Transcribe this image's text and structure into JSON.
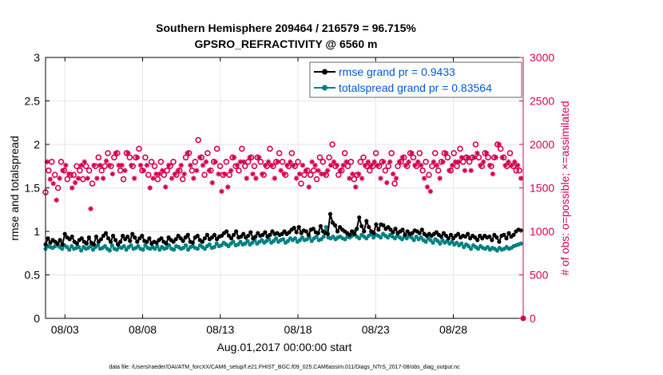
{
  "chart_data": {
    "type": "line",
    "title": "Southern Hemisphere 209464 / 216579 = 96.715%",
    "subtitle": "GPSRO_REFRACTIVITY @ 6560 m",
    "xlabel": "Aug.01,2017 00:00:00 start",
    "ylabel_left": "rmse and totalspread",
    "ylabel_right": "# of obs: o=possible; ×=assimilated",
    "footer": "data file: /Users/raeder/DAI/ATM_forcXX/CAM6_setup/f.e21.FHIST_BGC.f09_025.CAM6assim.011/Diags_NTrS_2017-08/obs_diag_output.nc",
    "x_tick_labels": [
      "08/03",
      "08/08",
      "08/13",
      "08/18",
      "08/23",
      "08/28"
    ],
    "x_tick_values": [
      3,
      8,
      13,
      18,
      23,
      28
    ],
    "xlim": [
      1.75,
      32.5
    ],
    "ylim_left": [
      0,
      3
    ],
    "ylim_right": [
      0,
      3000
    ],
    "y_left_ticks": [
      "0",
      "0.5",
      "1",
      "1.5",
      "2",
      "2.5",
      "3"
    ],
    "y_right_ticks": [
      "0",
      "500",
      "1000",
      "1500",
      "2000",
      "2500",
      "3000"
    ],
    "grid": true,
    "legend_placement": "top-right",
    "colors": {
      "rmse": "#000000",
      "spread": "#008080",
      "obs": "#d6004f",
      "legend_text": "#0057d9",
      "grid": "#e6e6e6"
    },
    "series": [
      {
        "name": "rmse grand pr = 0.9433",
        "axis": "left",
        "values": [
          0.85,
          0.92,
          0.87,
          0.9,
          0.88,
          0.86,
          0.9,
          0.85,
          0.97,
          0.93,
          0.91,
          0.94,
          0.88,
          0.86,
          0.9,
          0.92,
          0.88,
          0.86,
          0.93,
          0.87,
          0.85,
          0.94,
          0.88,
          0.91,
          0.95,
          0.98,
          0.92,
          0.88,
          0.95,
          0.9,
          0.85,
          0.88,
          0.95,
          0.91,
          0.94,
          0.89,
          0.97,
          0.93,
          0.88,
          0.92,
          0.95,
          0.89,
          0.88,
          0.92,
          0.86,
          0.88,
          0.87,
          0.9,
          0.92,
          0.88,
          0.86,
          0.93,
          0.9,
          0.88,
          0.91,
          0.95,
          0.92,
          0.89,
          0.93,
          0.96,
          0.88,
          0.87,
          0.93,
          0.95,
          0.9,
          0.88,
          0.92,
          0.96,
          0.91,
          0.93,
          0.96,
          0.91,
          0.94,
          0.95,
          0.98,
          1.0,
          0.95,
          0.92,
          0.96,
          1.0,
          0.93,
          0.94,
          0.97,
          0.93,
          0.95,
          0.99,
          0.92,
          0.94,
          0.98,
          0.95,
          0.96,
          0.99,
          0.94,
          0.96,
          1.0,
          0.97,
          0.98,
          0.96,
          0.97,
          1.0,
          0.97,
          0.99,
          1.02,
          1.04,
          0.99,
          1.05,
          0.98,
          1.01,
          1.0,
          0.96,
          1.02,
          1.03,
          0.99,
          0.98,
          1.06,
          1.0,
          0.98,
          0.97,
          1.2,
          1.1,
          1.07,
          1.0,
          1.05,
          1.02,
          1.0,
          0.98,
          0.96,
          1.0,
          0.97,
          1.03,
          1.16,
          1.06,
          1.0,
          1.12,
          1.05,
          1.0,
          0.98,
          1.08,
          1.02,
          1.08,
          1.07,
          1.03,
          1.05,
          1.02,
          0.99,
          1.03,
          0.98,
          1.0,
          1.02,
          0.96,
          1.0,
          0.97,
          0.98,
          1.01,
          1.0,
          0.98,
          1.02,
          0.97,
          0.95,
          0.97,
          0.95,
          0.97,
          0.99,
          0.96,
          0.94,
          0.98,
          0.95,
          0.92,
          0.96,
          0.92,
          0.95,
          0.97,
          0.93,
          0.95,
          0.94,
          0.97,
          0.92,
          0.95,
          0.93,
          0.9,
          0.95,
          0.92,
          0.95,
          0.93,
          0.94,
          0.9,
          0.96,
          0.93,
          0.88,
          0.95,
          0.96,
          0.92,
          0.98,
          0.94,
          0.96,
          1.0,
          1.02,
          1.01
        ]
      },
      {
        "name": "totalspread grand pr = 0.83564",
        "axis": "left",
        "values": [
          0.8,
          0.83,
          0.82,
          0.81,
          0.83,
          0.84,
          0.82,
          0.8,
          0.84,
          0.82,
          0.79,
          0.83,
          0.8,
          0.81,
          0.82,
          0.78,
          0.82,
          0.8,
          0.81,
          0.83,
          0.79,
          0.82,
          0.84,
          0.8,
          0.81,
          0.83,
          0.8,
          0.78,
          0.84,
          0.8,
          0.79,
          0.82,
          0.81,
          0.83,
          0.79,
          0.82,
          0.84,
          0.8,
          0.81,
          0.83,
          0.8,
          0.79,
          0.84,
          0.81,
          0.8,
          0.82,
          0.8,
          0.83,
          0.79,
          0.82,
          0.8,
          0.81,
          0.84,
          0.8,
          0.79,
          0.83,
          0.82,
          0.8,
          0.81,
          0.84,
          0.79,
          0.82,
          0.83,
          0.81,
          0.8,
          0.84,
          0.82,
          0.8,
          0.83,
          0.85,
          0.81,
          0.82,
          0.86,
          0.83,
          0.84,
          0.87,
          0.85,
          0.83,
          0.86,
          0.88,
          0.84,
          0.85,
          0.88,
          0.85,
          0.86,
          0.89,
          0.85,
          0.87,
          0.9,
          0.86,
          0.88,
          0.9,
          0.87,
          0.89,
          0.91,
          0.87,
          0.89,
          0.92,
          0.88,
          0.9,
          0.91,
          0.87,
          0.89,
          0.92,
          0.9,
          0.92,
          0.88,
          0.9,
          0.93,
          0.9,
          0.91,
          0.93,
          0.89,
          0.92,
          0.94,
          0.9,
          0.91,
          0.94,
          1.05,
          0.93,
          0.92,
          0.94,
          0.91,
          0.93,
          0.94,
          0.92,
          0.91,
          0.94,
          0.93,
          0.95,
          1.0,
          0.94,
          0.92,
          0.96,
          0.94,
          0.92,
          0.95,
          0.97,
          0.93,
          0.96,
          0.95,
          0.93,
          0.97,
          0.95,
          0.93,
          0.96,
          0.94,
          0.92,
          0.95,
          0.93,
          0.91,
          0.94,
          0.92,
          0.95,
          0.93,
          0.9,
          0.94,
          0.91,
          0.93,
          0.9,
          0.88,
          0.92,
          0.9,
          0.87,
          0.91,
          0.89,
          0.86,
          0.9,
          0.87,
          0.89,
          0.86,
          0.88,
          0.85,
          0.87,
          0.84,
          0.86,
          0.82,
          0.85,
          0.83,
          0.8,
          0.84,
          0.82,
          0.8,
          0.83,
          0.81,
          0.8,
          0.82,
          0.79,
          0.81,
          0.8,
          0.78,
          0.81,
          0.79,
          0.8,
          0.82,
          0.8,
          0.81,
          0.83,
          0.84,
          0.85,
          0.86
        ]
      },
      {
        "name": "obs possible",
        "axis": "right",
        "marker": "o",
        "values": [
          1450,
          1850,
          1700,
          1650,
          1800,
          1600,
          1650,
          1400,
          1500,
          1650,
          1800,
          1750,
          1700,
          1800,
          1600,
          1700,
          1650,
          1550,
          1650,
          1600,
          1750,
          1650,
          1700,
          1800,
          1600,
          1850,
          1750,
          1650,
          1700,
          1300,
          1550,
          1800,
          1750,
          1650,
          1850,
          1800,
          1700,
          1650,
          1750,
          1850,
          1900,
          1800,
          1750,
          1700,
          1850,
          1950,
          1900,
          1800,
          1700,
          1800,
          1600,
          1750,
          1900,
          1950,
          1850,
          1800,
          1750,
          1650,
          1850,
          1900,
          1950,
          1800,
          1700,
          1750,
          1850,
          1800,
          1650,
          1550,
          1800,
          1650,
          1750,
          1700,
          1600,
          1700,
          1800,
          1750,
          1650,
          1550,
          1700,
          1800,
          1750,
          1650,
          1800,
          1700,
          1650,
          1750,
          1700,
          1800,
          1600,
          1700,
          1850,
          1950,
          1900,
          1800,
          1700,
          1650,
          1800,
          1750,
          2050,
          1900,
          1850,
          1800,
          1650,
          1850,
          1900,
          1750,
          1700,
          1600,
          1800,
          1850,
          1950,
          1700,
          1750,
          1500,
          1650,
          1700,
          1800,
          1550,
          1650,
          1750,
          1850,
          1900,
          1750,
          1800,
          1700,
          1850,
          1950,
          1850,
          1750,
          1650,
          1800,
          1900,
          1850,
          1700,
          1750,
          1650,
          1850,
          1900,
          1800,
          1700,
          1650,
          1800,
          1750,
          1850,
          1950,
          1800,
          1750,
          1650,
          1800,
          1850,
          1900,
          1750,
          1800,
          1700,
          1650,
          1800,
          1750,
          1850,
          1900,
          1800,
          1750,
          1650,
          1800,
          1700,
          1550,
          1800,
          1650,
          1750,
          1700,
          1550,
          1650,
          1850,
          1700,
          1800,
          1600,
          1750,
          1850,
          1700,
          1800,
          1700,
          1650,
          1750,
          1850,
          1800,
          2000,
          1850,
          1750,
          1800,
          1650,
          1750,
          1700,
          1800,
          1900,
          1850,
          1750,
          1650,
          1800,
          1700,
          1600,
          1550,
          1650,
          1700,
          1800,
          1650,
          1850,
          1800,
          1750,
          1850,
          1700,
          1800,
          1750,
          1850,
          1900,
          1800,
          1750,
          1650,
          1800,
          1850,
          1700,
          1600,
          1750,
          1850,
          1900,
          1700,
          1550,
          1650,
          1750,
          1850,
          1800,
          1900,
          1850,
          1800,
          1750,
          1850,
          1900,
          1950,
          1850,
          1800,
          1750,
          1850,
          1900,
          1800,
          1700,
          1650,
          1800,
          1550,
          1650,
          1500,
          1750,
          1850,
          1900,
          1800,
          1700,
          1650,
          1800,
          1850,
          1900,
          1950,
          1850,
          1750,
          1700,
          1800,
          1900,
          1850,
          1750,
          1850,
          1950,
          1900,
          1800,
          1750,
          1850,
          1900,
          1800,
          1750,
          1850,
          1900,
          2000,
          1950,
          1850,
          1800,
          1750,
          1850,
          1900,
          1950,
          1850,
          1800,
          1750,
          1700,
          1850,
          1900,
          2000,
          2050,
          1950,
          1900,
          1850,
          1800,
          1750,
          1850,
          1900,
          1800,
          1750,
          1850,
          1700,
          1800,
          1700,
          1650
        ]
      },
      {
        "name": "obs assimilated",
        "axis": "right",
        "marker": "*",
        "values": [
          1420,
          1800,
          1660,
          1600,
          1760,
          1550,
          1610,
          1360,
          1450,
          1610,
          1760,
          1700,
          1660,
          1760,
          1560,
          1660,
          1610,
          1500,
          1600,
          1560,
          1700,
          1610,
          1660,
          1760,
          1560,
          1800,
          1700,
          1610,
          1660,
          1260,
          1510,
          1760,
          1700,
          1610,
          1800,
          1760,
          1660,
          1610,
          1700,
          1810,
          1850,
          1760,
          1700,
          1660,
          1800,
          1900,
          1850,
          1760,
          1660,
          1760,
          1560,
          1700,
          1850,
          1900,
          1800,
          1760,
          1700,
          1610,
          1800,
          1850,
          1900,
          1760,
          1660,
          1700,
          1800,
          1760,
          1610,
          1500,
          1760,
          1610,
          1700,
          1660,
          1560,
          1660,
          1760,
          1700,
          1610,
          1510,
          1660,
          1760,
          1700,
          1610,
          1760,
          1660,
          1610,
          1700,
          1660,
          1760,
          1560,
          1660,
          1800,
          1900,
          1850,
          1760,
          1660,
          1610,
          1760,
          1700,
          2000,
          1850,
          1800,
          1760,
          1610,
          1800,
          1850,
          1700,
          1660,
          1560,
          1760,
          1800,
          1900,
          1660,
          1700,
          1460,
          1610,
          1660,
          1760,
          1510,
          1610,
          1700,
          1800,
          1850,
          1700,
          1760,
          1660,
          1800,
          1900,
          1800,
          1700,
          1610,
          1760,
          1850,
          1800,
          1660,
          1700,
          1610,
          1800,
          1850,
          1760,
          1660,
          1610,
          1760,
          1700,
          1800,
          1900,
          1760,
          1700,
          1610,
          1760,
          1800,
          1850,
          1700,
          1760,
          1660,
          1610,
          1760,
          1700,
          1800,
          1850,
          1760,
          1700,
          1610,
          1760,
          1660,
          1510,
          1760,
          1610,
          1700,
          1660,
          1510,
          1610,
          1800,
          1660,
          1760,
          1560,
          1700,
          1800,
          1660,
          1760,
          1660,
          1610,
          1700,
          1800,
          1760,
          1950,
          1800,
          1700,
          1760,
          1610,
          1700,
          1660,
          1760,
          1850,
          1800,
          1700,
          1610,
          1760,
          1660,
          1560,
          1510,
          1610,
          1660,
          1760,
          1610,
          1800,
          1760,
          1700,
          1800,
          1660,
          1760,
          1700,
          1800,
          1850,
          1760,
          1700,
          1610,
          1760,
          1800,
          1660,
          1560,
          1700,
          1800,
          1850,
          1660,
          1510,
          1610,
          1700,
          1800,
          1760,
          1850,
          1800,
          1760,
          1700,
          1800,
          1850,
          1900,
          1800,
          1760,
          1700,
          1800,
          1850,
          1760,
          1660,
          1610,
          1760,
          1510,
          1610,
          1460,
          1700,
          1800,
          1850,
          1760,
          1660,
          1610,
          1760,
          1800,
          1850,
          1900,
          1800,
          1700,
          1660,
          1760,
          1850,
          1800,
          1700,
          1800,
          1900,
          1850,
          1760,
          1700,
          1800,
          1850,
          1760,
          1700,
          1800,
          1850,
          1950,
          1900,
          1800,
          1760,
          1700,
          1800,
          1850,
          1900,
          1800,
          1760,
          1700,
          1660,
          1800,
          1850,
          1950,
          2000,
          1900,
          1850,
          1800,
          1760,
          1700,
          1800,
          1850,
          1760,
          1700,
          1800,
          1660,
          1760,
          1660,
          1610
        ]
      }
    ]
  }
}
